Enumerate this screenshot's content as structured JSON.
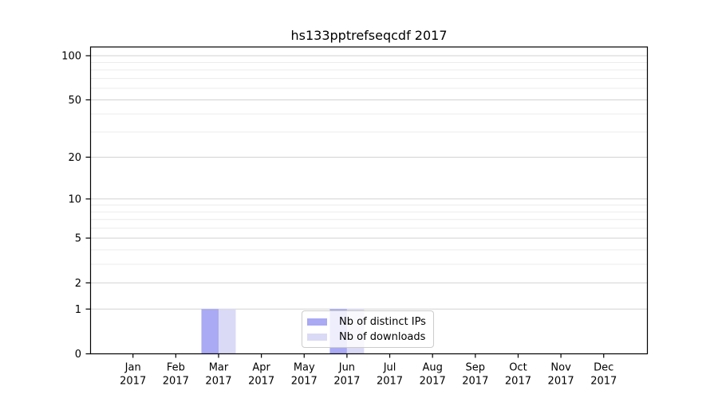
{
  "chart_data": {
    "type": "bar",
    "title": "hs133pptrefseqcdf 2017",
    "categories": [
      {
        "month": "Jan",
        "year": "2017"
      },
      {
        "month": "Feb",
        "year": "2017"
      },
      {
        "month": "Mar",
        "year": "2017"
      },
      {
        "month": "Apr",
        "year": "2017"
      },
      {
        "month": "May",
        "year": "2017"
      },
      {
        "month": "Jun",
        "year": "2017"
      },
      {
        "month": "Jul",
        "year": "2017"
      },
      {
        "month": "Aug",
        "year": "2017"
      },
      {
        "month": "Sep",
        "year": "2017"
      },
      {
        "month": "Oct",
        "year": "2017"
      },
      {
        "month": "Nov",
        "year": "2017"
      },
      {
        "month": "Dec",
        "year": "2017"
      }
    ],
    "series": [
      {
        "name": "Nb of distinct IPs",
        "color": "#a9a9f4",
        "values": [
          0,
          0,
          1,
          0,
          0,
          1,
          0,
          0,
          0,
          0,
          0,
          0
        ]
      },
      {
        "name": "Nb of downloads",
        "color": "#dadaf6",
        "values": [
          0,
          0,
          1,
          0,
          0,
          1,
          0,
          0,
          0,
          0,
          0,
          0
        ]
      }
    ],
    "xlabel": "",
    "ylabel": "",
    "yscale": "log1p",
    "ylim": [
      0,
      115
    ],
    "yticks": [
      0,
      1,
      2,
      5,
      10,
      20,
      50,
      100
    ],
    "minor_gridlines": [
      3,
      4,
      6,
      7,
      8,
      9,
      30,
      40,
      60,
      70,
      80,
      90
    ],
    "grid": "horizontal",
    "legend_position": "bottom-center",
    "colors": {
      "axis": "#000000",
      "tick_text": "#000000",
      "major_grid": "#d2d2d2",
      "minor_grid": "#ececec",
      "legend_border": "#cccccc",
      "legend_background": "rgba(255,255,255,0.8)",
      "background": "#ffffff"
    }
  }
}
